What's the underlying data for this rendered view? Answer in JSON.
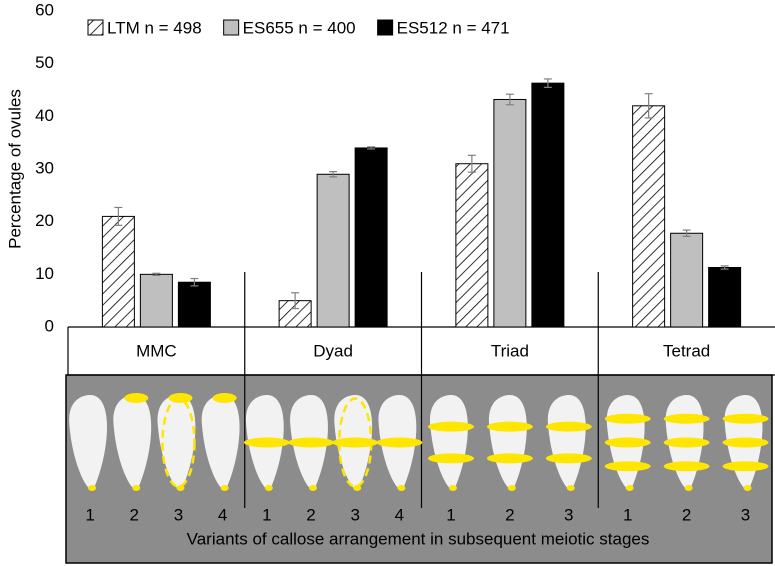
{
  "chart_data": {
    "type": "bar",
    "y_label": "Percentage of ovules",
    "categories": [
      "MMC",
      "Dyad",
      "Triad",
      "Tetrad"
    ],
    "series": [
      {
        "name": "LTM n = 498",
        "color": "#ffffff",
        "pattern": "hatch",
        "values": [
          21,
          5,
          31,
          42
        ],
        "errors": [
          1.7,
          1.5,
          1.6,
          2.3
        ]
      },
      {
        "name": "ES655 n = 400",
        "color": "#bfbfbf",
        "values": [
          10,
          29,
          43.2,
          17.8
        ],
        "errors": [
          0.2,
          0.5,
          1.0,
          0.6
        ]
      },
      {
        "name": "ES512 n = 471",
        "color": "#000000",
        "values": [
          8.5,
          34,
          46.3,
          11.3
        ],
        "errors": [
          0.7,
          0.2,
          0.8,
          0.3
        ]
      }
    ],
    "ylim": [
      0,
      60
    ],
    "yticks": [
      0,
      10,
      20,
      30,
      40,
      50,
      60
    ],
    "panel": {
      "variants": [
        [
          1,
          2,
          3,
          4
        ],
        [
          1,
          2,
          3,
          4
        ],
        [
          1,
          2,
          3
        ],
        [
          1,
          2,
          3
        ]
      ],
      "caption": "Variants of callose arrangement in subsequent meiotic stages"
    }
  }
}
